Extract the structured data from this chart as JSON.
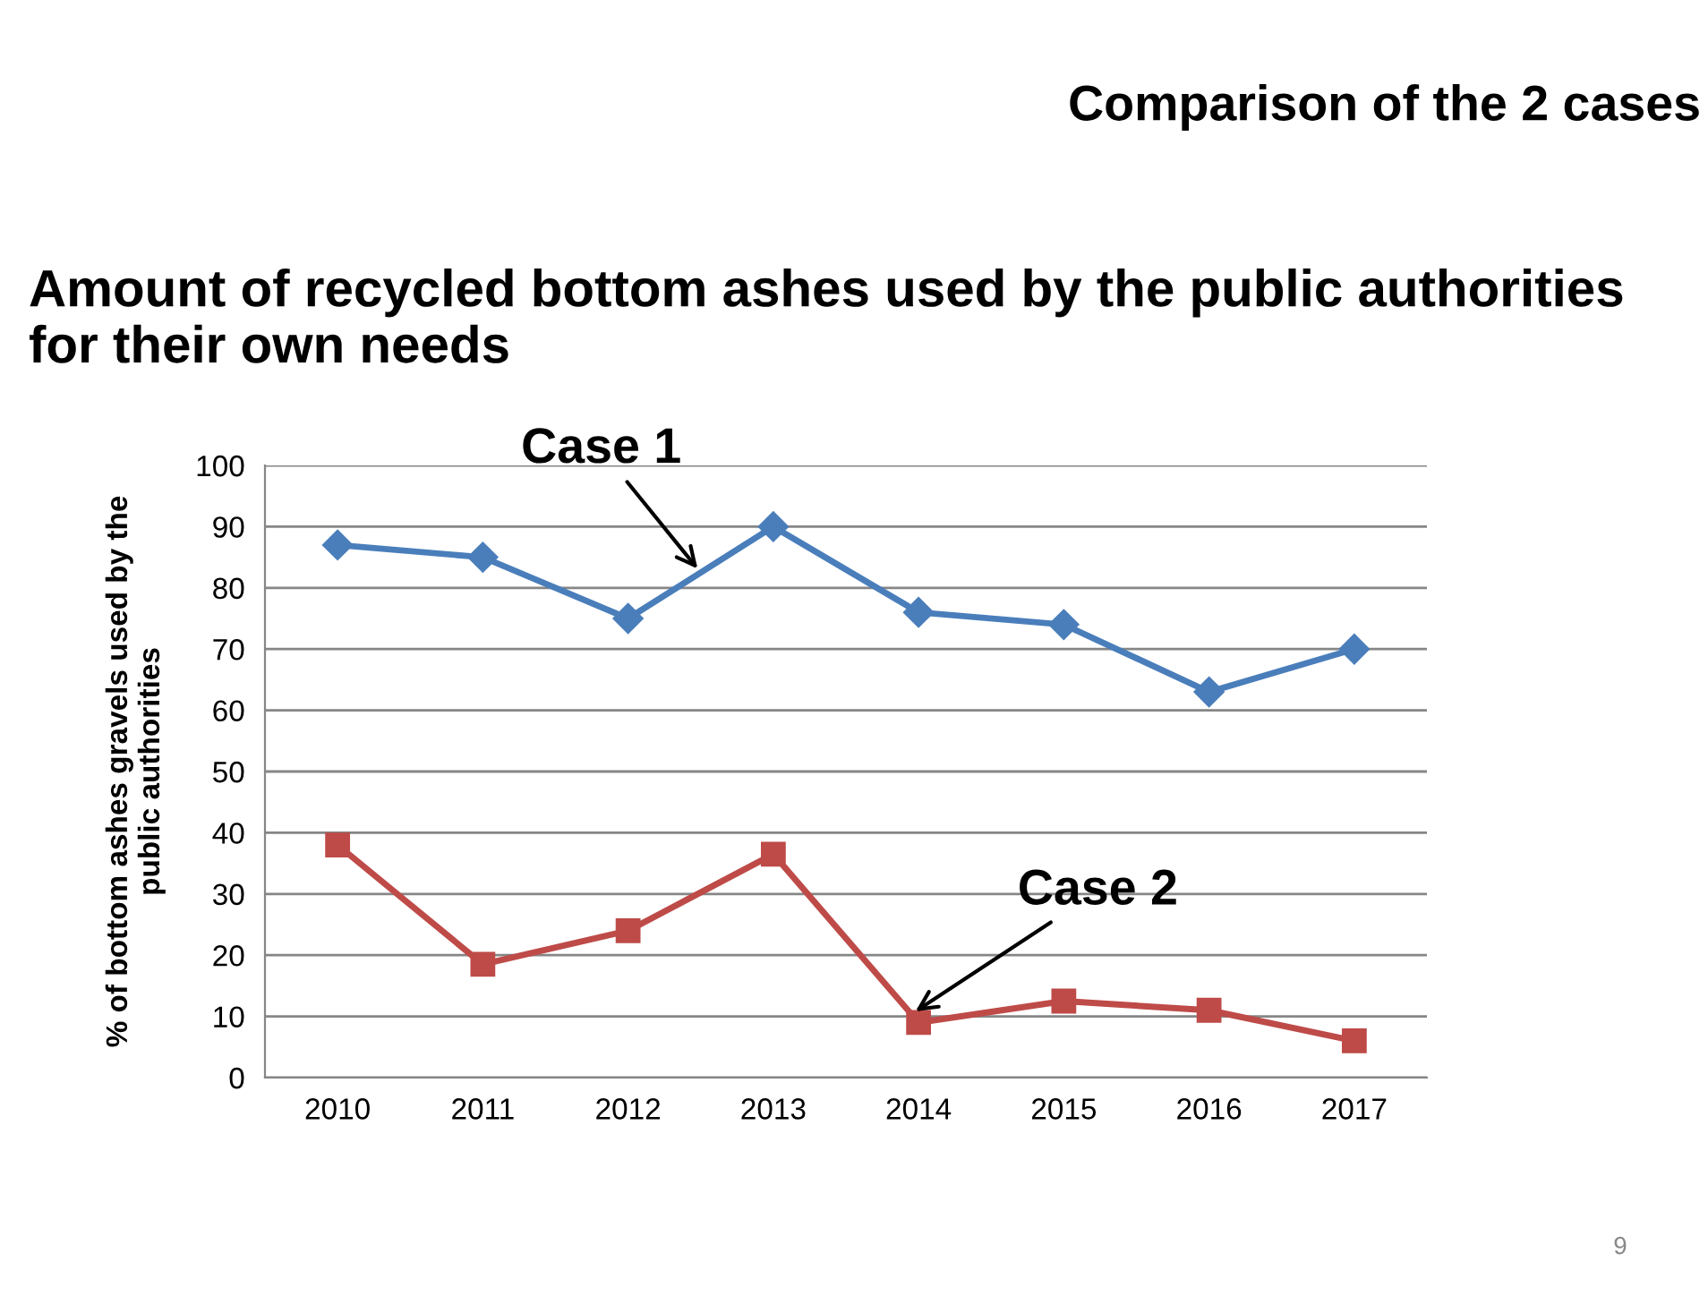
{
  "chart_data": {
    "type": "line",
    "title": "Amount of recycled bottom ashes used by the public authorities for their own needs",
    "subtitle": "Comparison of the 2 cases",
    "ylabel": "% of bottom ashes gravels used by the\npublic authorities",
    "categories": [
      "2010",
      "2011",
      "2012",
      "2013",
      "2014",
      "2015",
      "2016",
      "2017"
    ],
    "series": [
      {
        "name": "Case 1",
        "color": "#4a7ebb",
        "marker": "diamond",
        "values": [
          87,
          85,
          75,
          90,
          76,
          74,
          63,
          70
        ]
      },
      {
        "name": "Case 2",
        "color": "#be4b48",
        "marker": "square",
        "values": [
          38,
          18.5,
          24,
          36.5,
          9,
          12.5,
          11,
          6
        ]
      }
    ],
    "ylim": [
      0,
      100
    ],
    "yticks": [
      0,
      10,
      20,
      30,
      40,
      50,
      60,
      70,
      80,
      90,
      100
    ],
    "grid": "y",
    "line_style": "solid",
    "annotations": [
      "9"
    ]
  }
}
